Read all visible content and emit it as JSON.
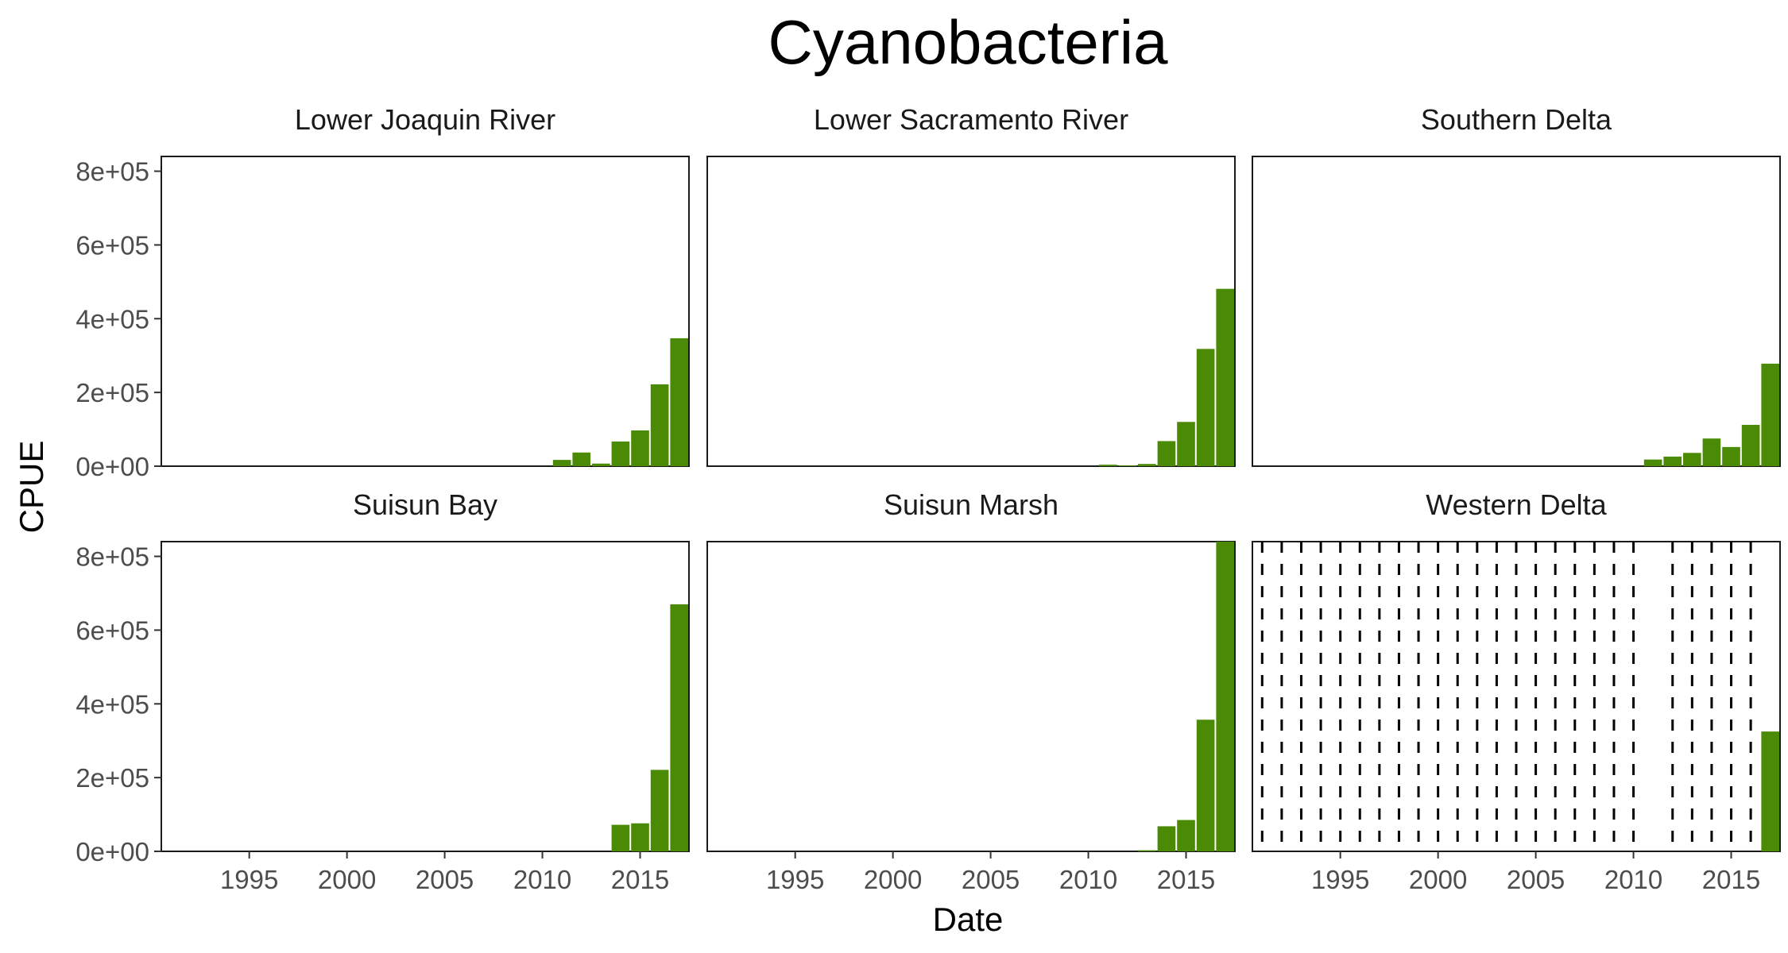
{
  "chart_data": {
    "type": "bar",
    "title": "Cyanobacteria",
    "xlabel": "Date",
    "ylabel": "CPUE",
    "xlim": [
      1990.5,
      2017.5
    ],
    "ylim": [
      0,
      840000
    ],
    "x_ticks": [
      {
        "value": 1995,
        "label": "1995"
      },
      {
        "value": 2000,
        "label": "2000"
      },
      {
        "value": 2005,
        "label": "2005"
      },
      {
        "value": 2010,
        "label": "2010"
      },
      {
        "value": 2015,
        "label": "2015"
      }
    ],
    "y_ticks": [
      {
        "value": 0,
        "label": "0e+00"
      },
      {
        "value": 200000,
        "label": "2e+05"
      },
      {
        "value": 400000,
        "label": "4e+05"
      },
      {
        "value": 600000,
        "label": "6e+05"
      },
      {
        "value": 800000,
        "label": "8e+05"
      }
    ],
    "bar_color": "#4a8a05",
    "panels": [
      {
        "name": "Lower Joaquin River",
        "bars": [
          {
            "x": 2011,
            "y": 17000
          },
          {
            "x": 2012,
            "y": 37000
          },
          {
            "x": 2013,
            "y": 7000
          },
          {
            "x": 2014,
            "y": 67000
          },
          {
            "x": 2015,
            "y": 97000
          },
          {
            "x": 2016,
            "y": 222000
          },
          {
            "x": 2017,
            "y": 347000
          }
        ]
      },
      {
        "name": "Lower Sacramento River",
        "bars": [
          {
            "x": 2011,
            "y": 4000
          },
          {
            "x": 2012,
            "y": 2000
          },
          {
            "x": 2013,
            "y": 6000
          },
          {
            "x": 2014,
            "y": 68000
          },
          {
            "x": 2015,
            "y": 120000
          },
          {
            "x": 2016,
            "y": 318000
          },
          {
            "x": 2017,
            "y": 481000
          }
        ]
      },
      {
        "name": "Southern Delta",
        "bars": [
          {
            "x": 2011,
            "y": 18000
          },
          {
            "x": 2012,
            "y": 26000
          },
          {
            "x": 2013,
            "y": 36000
          },
          {
            "x": 2014,
            "y": 75000
          },
          {
            "x": 2015,
            "y": 52000
          },
          {
            "x": 2016,
            "y": 112000
          },
          {
            "x": 2017,
            "y": 278000
          }
        ]
      },
      {
        "name": "Suisun Bay",
        "bars": [
          {
            "x": 2014,
            "y": 72000
          },
          {
            "x": 2015,
            "y": 76000
          },
          {
            "x": 2016,
            "y": 221000
          },
          {
            "x": 2017,
            "y": 670000
          }
        ]
      },
      {
        "name": "Suisun Marsh",
        "bars": [
          {
            "x": 2013,
            "y": 3000
          },
          {
            "x": 2014,
            "y": 68000
          },
          {
            "x": 2015,
            "y": 85000
          },
          {
            "x": 2016,
            "y": 357000
          },
          {
            "x": 2017,
            "y": 840000
          }
        ]
      },
      {
        "name": "Western Delta",
        "bars": [
          {
            "x": 2017,
            "y": 325000
          }
        ],
        "dashed_lines_x": [
          1991,
          1992,
          1993,
          1994,
          1995,
          1996,
          1997,
          1998,
          1999,
          2000,
          2001,
          2002,
          2003,
          2004,
          2005,
          2006,
          2007,
          2008,
          2009,
          2010,
          2012,
          2013,
          2014,
          2015,
          2016
        ]
      }
    ]
  }
}
